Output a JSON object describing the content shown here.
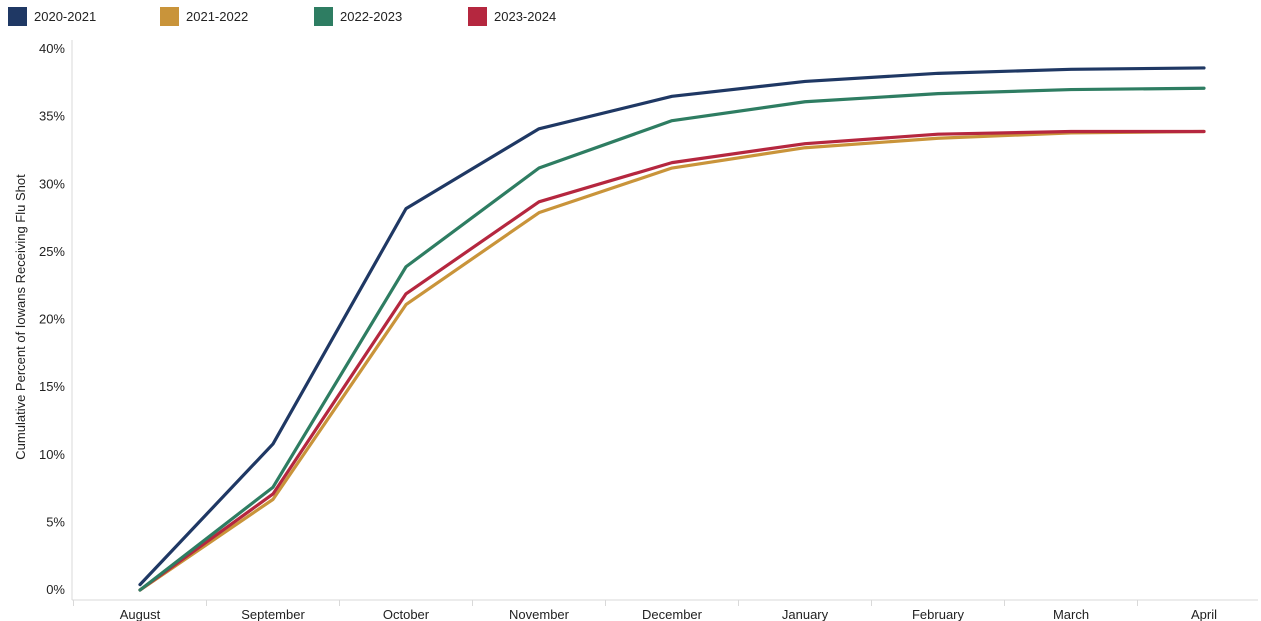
{
  "chart_data": {
    "type": "line",
    "title": "",
    "xlabel": "",
    "ylabel": "Cumulative Percent of Iowans Receiving Flu Shot",
    "categories": [
      "August",
      "September",
      "October",
      "November",
      "December",
      "January",
      "February",
      "March",
      "April"
    ],
    "ylim": [
      0,
      40
    ],
    "yticks": [
      "0%",
      "5%",
      "10%",
      "15%",
      "20%",
      "25%",
      "30%",
      "35%",
      "40%"
    ],
    "grid": false,
    "legend_position": "top-left",
    "series": [
      {
        "name": "2020-2021",
        "color": "#1f3864",
        "values": [
          0.4,
          10.8,
          28.2,
          34.1,
          36.5,
          37.6,
          38.2,
          38.5,
          38.6
        ]
      },
      {
        "name": "2021-2022",
        "color": "#c9943a",
        "values": [
          0.0,
          6.7,
          21.1,
          27.9,
          31.2,
          32.7,
          33.4,
          33.8,
          33.9
        ]
      },
      {
        "name": "2022-2023",
        "color": "#2e7d62",
        "values": [
          0.0,
          7.6,
          23.9,
          31.2,
          34.7,
          36.1,
          36.7,
          37.0,
          37.1
        ]
      },
      {
        "name": "2023-2024",
        "color": "#b5273f",
        "values": [
          0.0,
          7.1,
          21.9,
          28.7,
          31.6,
          33.0,
          33.7,
          33.9,
          33.9
        ]
      }
    ]
  }
}
